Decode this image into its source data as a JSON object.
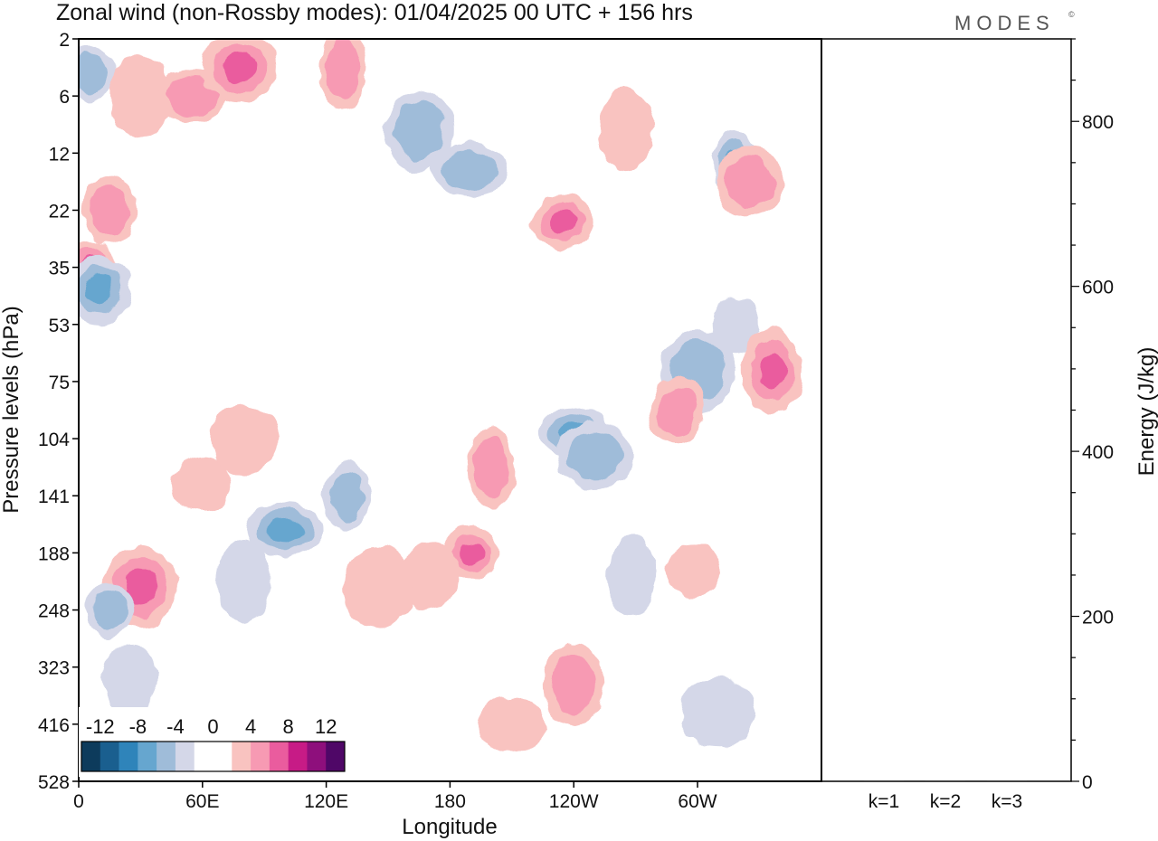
{
  "title": "Zonal wind (non-Rossby modes):  01/04/2025  00 UTC  + 156 hrs",
  "logo": "MODES",
  "logo_mark": "©",
  "chart_data": [
    {
      "type": "heatmap",
      "title": "Zonal wind (non-Rossby modes):  01/04/2025  00 UTC  + 156 hrs",
      "xlabel": "Longitude",
      "ylabel": "Pressure levels (hPa)",
      "x_ticks": [
        "0",
        "60E",
        "120E",
        "180",
        "120W",
        "60W"
      ],
      "y_ticks": [
        "2",
        "6",
        "12",
        "22",
        "35",
        "53",
        "75",
        "104",
        "141",
        "188",
        "248",
        "323",
        "416",
        "528"
      ],
      "colorbar": {
        "labels": [
          "-12",
          "-8",
          "-4",
          "0",
          "4",
          "8",
          "12"
        ],
        "colors": [
          "#0d3b5c",
          "#1a5f8f",
          "#2f84ba",
          "#66a6cf",
          "#9fbcd9",
          "#d4d7e8",
          "#ffffff",
          "#ffffff",
          "#f9c3c0",
          "#f79ab3",
          "#ea5c9e",
          "#c71b86",
          "#8e0f7c",
          "#4f0767"
        ]
      },
      "contour_features": [
        {
          "sign": "pos",
          "lon": 6,
          "lev": 4.0,
          "amp": 8
        },
        {
          "sign": "pos",
          "lon": 15,
          "lev": 3.0,
          "amp": 6
        },
        {
          "sign": "pos",
          "lon": 30,
          "lev": 1.0,
          "amp": 4
        },
        {
          "sign": "pos",
          "lon": 55,
          "lev": 1.0,
          "amp": 6
        },
        {
          "sign": "pos",
          "lon": 78,
          "lev": 0.5,
          "amp": 8
        },
        {
          "sign": "pos",
          "lon": 128,
          "lev": 0.5,
          "amp": 6
        },
        {
          "sign": "neg",
          "lon": 5,
          "lev": 0.6,
          "amp": -6
        },
        {
          "sign": "neg",
          "lon": 10,
          "lev": 4.4,
          "amp": -8
        },
        {
          "sign": "neg",
          "lon": 165,
          "lev": 1.6,
          "amp": -6
        },
        {
          "sign": "neg",
          "lon": 190,
          "lev": 2.3,
          "amp": -6
        },
        {
          "sign": "neg",
          "lon": 318,
          "lev": 2.2,
          "amp": -8
        },
        {
          "sign": "pos",
          "lon": 265,
          "lev": 1.6,
          "amp": 4
        },
        {
          "sign": "pos",
          "lon": 235,
          "lev": 3.2,
          "amp": 8
        },
        {
          "sign": "pos",
          "lon": 325,
          "lev": 2.5,
          "amp": 6
        },
        {
          "sign": "neg",
          "lon": 300,
          "lev": 5.8,
          "amp": -6
        },
        {
          "sign": "neg",
          "lon": 318,
          "lev": 5.0,
          "amp": -4
        },
        {
          "sign": "pos",
          "lon": 290,
          "lev": 6.5,
          "amp": 6
        },
        {
          "sign": "pos",
          "lon": 336,
          "lev": 5.8,
          "amp": 8
        },
        {
          "sign": "neg",
          "lon": 240,
          "lev": 6.9,
          "amp": -8
        },
        {
          "sign": "neg",
          "lon": 250,
          "lev": 7.3,
          "amp": -6
        },
        {
          "sign": "pos",
          "lon": 200,
          "lev": 7.5,
          "amp": 6
        },
        {
          "sign": "pos",
          "lon": 190,
          "lev": 9.0,
          "amp": 8
        },
        {
          "sign": "pos",
          "lon": 170,
          "lev": 9.4,
          "amp": 4
        },
        {
          "sign": "pos",
          "lon": 145,
          "lev": 9.6,
          "amp": 4
        },
        {
          "sign": "neg",
          "lon": 100,
          "lev": 8.6,
          "amp": -8
        },
        {
          "sign": "neg",
          "lon": 130,
          "lev": 8.0,
          "amp": -6
        },
        {
          "sign": "neg",
          "lon": 80,
          "lev": 9.5,
          "amp": -4
        },
        {
          "sign": "pos",
          "lon": 60,
          "lev": 7.8,
          "amp": 4
        },
        {
          "sign": "pos",
          "lon": 80,
          "lev": 7.0,
          "amp": 4
        },
        {
          "sign": "pos",
          "lon": 30,
          "lev": 9.6,
          "amp": 8
        },
        {
          "sign": "neg",
          "lon": 15,
          "lev": 10.0,
          "amp": -6
        },
        {
          "sign": "neg",
          "lon": 25,
          "lev": 11.2,
          "amp": -4
        },
        {
          "sign": "pos",
          "lon": 240,
          "lev": 11.3,
          "amp": 6
        },
        {
          "sign": "pos",
          "lon": 210,
          "lev": 12.0,
          "amp": 4
        },
        {
          "sign": "neg",
          "lon": 310,
          "lev": 11.8,
          "amp": -4
        },
        {
          "sign": "neg",
          "lon": 268,
          "lev": 9.4,
          "amp": -4
        },
        {
          "sign": "pos",
          "lon": 298,
          "lev": 9.3,
          "amp": 4
        }
      ]
    },
    {
      "type": "bar",
      "ylabel": "Energy (J/kg)",
      "categories": [
        "k=1",
        "k=2",
        "k=3"
      ],
      "values": [
        1.0,
        0.8,
        0.6
      ],
      "ylim": [
        0,
        900
      ],
      "y_ticks": [
        "0",
        "200",
        "400",
        "600",
        "800"
      ]
    }
  ]
}
